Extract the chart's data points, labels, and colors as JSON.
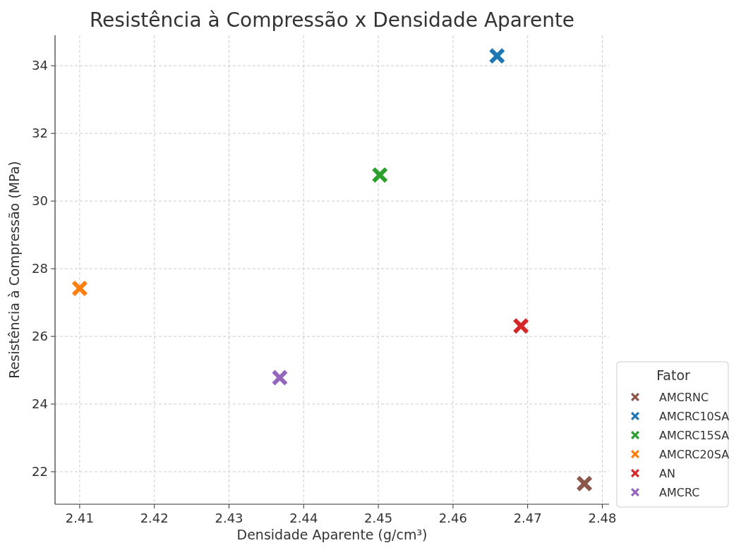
{
  "chart_data": {
    "type": "scatter",
    "title": "Resistência à Compressão x Densidade Aparente",
    "xlabel": "Densidade Aparente (g/cm³)",
    "ylabel": "Resistência à Compressão (MPa)",
    "legend_title": "Fator",
    "legend": "right",
    "grid": true,
    "marker": "cross",
    "xlim": [
      2.4067,
      2.4809
    ],
    "ylim": [
      21.04,
      34.9
    ],
    "xticks": [
      {
        "value": 2.41,
        "label": "2.41"
      },
      {
        "value": 2.42,
        "label": "2.42"
      },
      {
        "value": 2.43,
        "label": "2.43"
      },
      {
        "value": 2.44,
        "label": "2.44"
      },
      {
        "value": 2.45,
        "label": "2.45"
      },
      {
        "value": 2.46,
        "label": "2.46"
      },
      {
        "value": 2.47,
        "label": "2.47"
      },
      {
        "value": 2.48,
        "label": "2.48"
      }
    ],
    "yticks": [
      22,
      24,
      26,
      28,
      30,
      32,
      34
    ],
    "series": [
      {
        "name": "AMCRNC",
        "color": "#8c564b",
        "x": [
          2.4776
        ],
        "values": [
          21.65
        ]
      },
      {
        "name": "AMCRC10SA",
        "color": "#1f77b4",
        "x": [
          2.4659
        ],
        "values": [
          34.29
        ]
      },
      {
        "name": "AMCRC15SA",
        "color": "#2ca02c",
        "x": [
          2.4502
        ],
        "values": [
          30.77
        ]
      },
      {
        "name": "AMCRC20SA",
        "color": "#ff7f0e",
        "x": [
          2.41
        ],
        "values": [
          27.42
        ]
      },
      {
        "name": "AN",
        "color": "#d62728",
        "x": [
          2.4691
        ],
        "values": [
          26.31
        ]
      },
      {
        "name": "AMCRC",
        "color": "#9467bd",
        "x": [
          2.4368
        ],
        "values": [
          24.78
        ]
      }
    ]
  }
}
